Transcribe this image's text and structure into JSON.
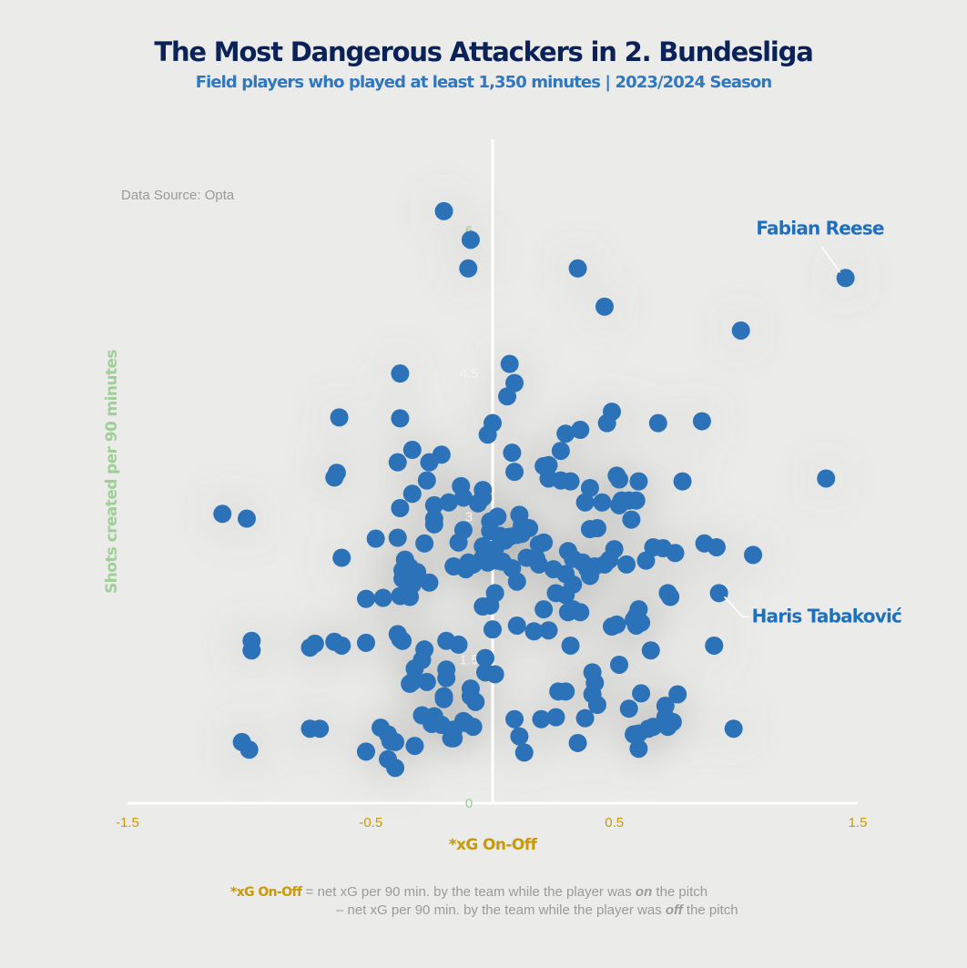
{
  "title": "The Most Dangerous Attackers in 2. Bundesliga",
  "subtitle": "Field players who played at least 1,350 minutes | 2023/2024 Season",
  "source": "Data Source: Opta",
  "footnote": {
    "key": "*xG On-Off",
    "line1_before": " = net xG per 90 min. by the team while the player was ",
    "line1_em": "on",
    "line1_after": " the pitch",
    "line2_before": "– net xG per 90 min. by the team while the player was ",
    "line2_em": "off",
    "line2_after": " the pitch"
  },
  "colors": {
    "background": "#ebebe9",
    "point": "#2b72b8",
    "axis": "#ffffff",
    "title": "#0b2258",
    "subtitle": "#2f78bf",
    "xaxis_text": "#c69a0a",
    "yaxis_text": "#9ecf97",
    "label": "#1f6fbf"
  },
  "chart_data": {
    "type": "scatter",
    "title": "The Most Dangerous Attackers in 2. Bundesliga",
    "xlabel": "*xG On-Off",
    "ylabel": "Shots created per 90 minutes",
    "xlim": [
      -1.5,
      1.5
    ],
    "ylim": [
      0,
      7
    ],
    "xticks": [
      "-1.5",
      "-0.5",
      "0.5",
      "1.5"
    ],
    "xtick_values": [
      -1.5,
      -0.5,
      0.5,
      1.5
    ],
    "yticks": [
      "0",
      "1.5",
      "3",
      "4.5",
      "6"
    ],
    "ytick_values": [
      0,
      1.5,
      3,
      4.5,
      6
    ],
    "annotations": [
      {
        "name": "Fabian Reese",
        "x": 1.45,
        "y": 5.5
      },
      {
        "name": "Haris Tabaković",
        "x": 0.93,
        "y": 2.2
      }
    ],
    "points": [
      [
        -0.2,
        6.2
      ],
      [
        -0.09,
        5.9
      ],
      [
        -0.1,
        5.6
      ],
      [
        0.35,
        5.6
      ],
      [
        0.46,
        5.2
      ],
      [
        1.02,
        4.95
      ],
      [
        1.45,
        5.5
      ],
      [
        -0.38,
        4.5
      ],
      [
        0.07,
        4.6
      ],
      [
        0.09,
        4.4
      ],
      [
        0.06,
        4.26
      ],
      [
        -0.63,
        4.04
      ],
      [
        -0.38,
        4.03
      ],
      [
        0.0,
        3.98
      ],
      [
        -0.02,
        3.86
      ],
      [
        0.49,
        4.1
      ],
      [
        0.47,
        3.98
      ],
      [
        0.68,
        3.98
      ],
      [
        0.86,
        4.0
      ],
      [
        0.3,
        3.87
      ],
      [
        0.36,
        3.91
      ],
      [
        -0.33,
        3.7
      ],
      [
        -0.21,
        3.65
      ],
      [
        -0.39,
        3.57
      ],
      [
        -0.26,
        3.57
      ],
      [
        0.08,
        3.67
      ],
      [
        0.28,
        3.69
      ],
      [
        0.21,
        3.53
      ],
      [
        0.23,
        3.54
      ],
      [
        0.09,
        3.47
      ],
      [
        -0.64,
        3.46
      ],
      [
        -0.65,
        3.41
      ],
      [
        -0.27,
        3.38
      ],
      [
        0.23,
        3.4
      ],
      [
        0.28,
        3.38
      ],
      [
        0.32,
        3.37
      ],
      [
        0.52,
        3.39
      ],
      [
        0.51,
        3.43
      ],
      [
        0.6,
        3.37
      ],
      [
        0.78,
        3.37
      ],
      [
        1.37,
        3.4
      ],
      [
        -0.13,
        3.32
      ],
      [
        0.4,
        3.3
      ],
      [
        -0.33,
        3.24
      ],
      [
        -0.04,
        3.28
      ],
      [
        -0.12,
        3.2
      ],
      [
        -0.18,
        3.15
      ],
      [
        -0.24,
        3.12
      ],
      [
        -0.38,
        3.09
      ],
      [
        -0.06,
        3.14
      ],
      [
        -0.04,
        3.2
      ],
      [
        0.38,
        3.15
      ],
      [
        0.45,
        3.15
      ],
      [
        0.53,
        3.17
      ],
      [
        0.56,
        3.17
      ],
      [
        0.59,
        3.17
      ],
      [
        0.52,
        3.12
      ],
      [
        0.11,
        3.02
      ],
      [
        0.02,
        3.0
      ],
      [
        -0.24,
        2.98
      ],
      [
        -0.24,
        2.92
      ],
      [
        -0.12,
        2.86
      ],
      [
        -0.01,
        2.95
      ],
      [
        0.12,
        2.91
      ],
      [
        0.15,
        2.88
      ],
      [
        0.4,
        2.87
      ],
      [
        0.43,
        2.88
      ],
      [
        0.57,
        2.97
      ],
      [
        -1.11,
        3.03
      ],
      [
        -1.01,
        2.98
      ],
      [
        -0.48,
        2.77
      ],
      [
        -0.39,
        2.78
      ],
      [
        -0.28,
        2.72
      ],
      [
        -0.14,
        2.73
      ],
      [
        -0.01,
        2.85
      ],
      [
        0.03,
        2.8
      ],
      [
        0.05,
        2.75
      ],
      [
        0.07,
        2.79
      ],
      [
        0.1,
        2.81
      ],
      [
        0.12,
        2.82
      ],
      [
        0.19,
        2.71
      ],
      [
        0.21,
        2.73
      ],
      [
        -0.04,
        2.69
      ],
      [
        0.01,
        2.66
      ],
      [
        0.31,
        2.64
      ],
      [
        0.5,
        2.66
      ],
      [
        0.66,
        2.68
      ],
      [
        0.7,
        2.67
      ],
      [
        0.75,
        2.62
      ],
      [
        0.87,
        2.72
      ],
      [
        0.92,
        2.68
      ],
      [
        1.07,
        2.6
      ],
      [
        -0.62,
        2.57
      ],
      [
        -0.36,
        2.55
      ],
      [
        -0.1,
        2.52
      ],
      [
        -0.08,
        2.5
      ],
      [
        -0.04,
        2.57
      ],
      [
        -0.02,
        2.52
      ],
      [
        0.02,
        2.54
      ],
      [
        0.04,
        2.53
      ],
      [
        0.14,
        2.57
      ],
      [
        0.18,
        2.56
      ],
      [
        0.19,
        2.5
      ],
      [
        0.33,
        2.56
      ],
      [
        0.37,
        2.52
      ],
      [
        0.42,
        2.48
      ],
      [
        0.46,
        2.5
      ],
      [
        0.48,
        2.55
      ],
      [
        0.55,
        2.5
      ],
      [
        0.63,
        2.54
      ],
      [
        -0.16,
        2.48
      ],
      [
        -0.37,
        2.44
      ],
      [
        -0.34,
        2.47
      ],
      [
        -0.31,
        2.42
      ],
      [
        -0.11,
        2.45
      ],
      [
        0.08,
        2.46
      ],
      [
        0.25,
        2.45
      ],
      [
        0.3,
        2.4
      ],
      [
        0.39,
        2.45
      ],
      [
        0.4,
        2.38
      ],
      [
        -0.37,
        2.35
      ],
      [
        -0.33,
        2.29
      ],
      [
        -0.26,
        2.31
      ],
      [
        0.01,
        2.2
      ],
      [
        0.1,
        2.32
      ],
      [
        0.33,
        2.29
      ],
      [
        0.26,
        2.2
      ],
      [
        0.3,
        2.18
      ],
      [
        0.72,
        2.2
      ],
      [
        0.73,
        2.16
      ],
      [
        0.93,
        2.2
      ],
      [
        -0.52,
        2.14
      ],
      [
        -0.45,
        2.15
      ],
      [
        -0.38,
        2.17
      ],
      [
        -0.34,
        2.16
      ],
      [
        -0.04,
        2.06
      ],
      [
        -0.01,
        2.07
      ],
      [
        0.21,
        2.03
      ],
      [
        0.33,
        2.03
      ],
      [
        0.31,
        2.0
      ],
      [
        0.36,
        2.0
      ],
      [
        0.6,
        2.03
      ],
      [
        0.59,
        1.96
      ],
      [
        0.58,
        1.92
      ],
      [
        -0.99,
        1.7
      ],
      [
        -0.99,
        1.6
      ],
      [
        -0.75,
        1.63
      ],
      [
        -0.73,
        1.67
      ],
      [
        -0.65,
        1.69
      ],
      [
        -0.62,
        1.65
      ],
      [
        -0.52,
        1.68
      ],
      [
        -0.39,
        1.77
      ],
      [
        -0.38,
        1.72
      ],
      [
        -0.37,
        1.7
      ],
      [
        -0.19,
        1.7
      ],
      [
        -0.14,
        1.66
      ],
      [
        0.0,
        1.82
      ],
      [
        0.1,
        1.86
      ],
      [
        0.17,
        1.8
      ],
      [
        0.23,
        1.81
      ],
      [
        0.49,
        1.85
      ],
      [
        0.51,
        1.87
      ],
      [
        0.59,
        1.86
      ],
      [
        0.61,
        1.89
      ],
      [
        -0.28,
        1.61
      ],
      [
        -0.29,
        1.5
      ],
      [
        -0.03,
        1.52
      ],
      [
        0.32,
        1.65
      ],
      [
        0.65,
        1.6
      ],
      [
        0.91,
        1.65
      ],
      [
        -0.32,
        1.41
      ],
      [
        -0.19,
        1.4
      ],
      [
        -0.03,
        1.37
      ],
      [
        0.01,
        1.35
      ],
      [
        0.41,
        1.37
      ],
      [
        0.52,
        1.45
      ],
      [
        -0.33,
        1.27
      ],
      [
        -0.34,
        1.25
      ],
      [
        -0.27,
        1.27
      ],
      [
        -0.19,
        1.31
      ],
      [
        -0.09,
        1.2
      ],
      [
        0.42,
        1.26
      ],
      [
        0.27,
        1.17
      ],
      [
        0.3,
        1.17
      ],
      [
        0.41,
        1.14
      ],
      [
        0.61,
        1.15
      ],
      [
        0.76,
        1.14
      ],
      [
        -0.2,
        1.12
      ],
      [
        -0.2,
        1.09
      ],
      [
        -0.09,
        1.12
      ],
      [
        -0.07,
        1.06
      ],
      [
        0.43,
        1.03
      ],
      [
        0.56,
        0.99
      ],
      [
        0.71,
        1.02
      ],
      [
        -0.29,
        0.92
      ],
      [
        -0.24,
        0.91
      ],
      [
        -0.25,
        0.83
      ],
      [
        -0.21,
        0.82
      ],
      [
        -0.12,
        0.86
      ],
      [
        -0.11,
        0.84
      ],
      [
        -0.08,
        0.8
      ],
      [
        -0.16,
        0.77
      ],
      [
        0.09,
        0.88
      ],
      [
        0.2,
        0.88
      ],
      [
        0.26,
        0.9
      ],
      [
        0.38,
        0.89
      ],
      [
        0.71,
        0.9
      ],
      [
        0.74,
        0.85
      ],
      [
        0.72,
        0.8
      ],
      [
        0.66,
        0.8
      ],
      [
        0.64,
        0.78
      ],
      [
        0.6,
        0.73
      ],
      [
        0.58,
        0.72
      ],
      [
        0.99,
        0.78
      ],
      [
        -0.75,
        0.78
      ],
      [
        -0.71,
        0.78
      ],
      [
        -0.46,
        0.79
      ],
      [
        -0.43,
        0.72
      ],
      [
        -0.42,
        0.65
      ],
      [
        -0.4,
        0.64
      ],
      [
        -0.32,
        0.6
      ],
      [
        -0.17,
        0.68
      ],
      [
        -0.16,
        0.68
      ],
      [
        0.11,
        0.7
      ],
      [
        0.13,
        0.53
      ],
      [
        0.35,
        0.63
      ],
      [
        0.6,
        0.57
      ],
      [
        -1.03,
        0.64
      ],
      [
        -1.0,
        0.56
      ],
      [
        -0.52,
        0.54
      ],
      [
        -0.43,
        0.46
      ],
      [
        -0.4,
        0.37
      ]
    ]
  }
}
